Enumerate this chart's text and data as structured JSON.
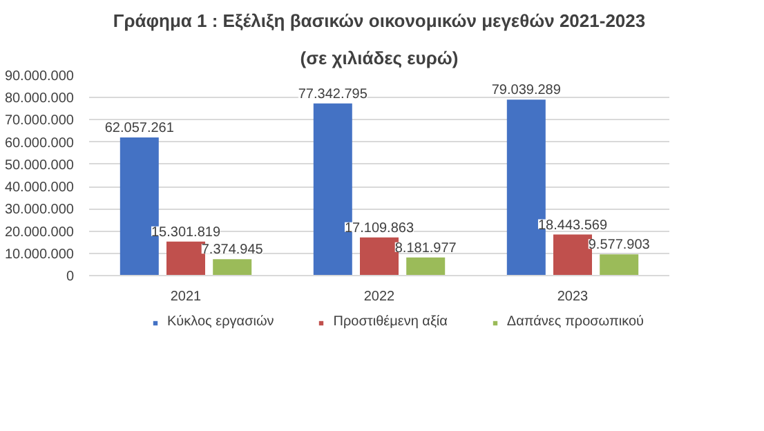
{
  "chart_data": {
    "type": "bar",
    "title": "Γράφημα 1 : Εξέλιξη βασικών οικονομικών μεγεθών 2021-2023",
    "subtitle": "(σε χιλιάδες ευρώ)",
    "categories": [
      "2021",
      "2022",
      "2023"
    ],
    "series": [
      {
        "name": "Κύκλος εργασιών",
        "color": "#4472c4",
        "values": [
          62057261,
          77342795,
          79039289
        ],
        "value_labels": [
          "62.057.261",
          "77.342.795",
          "79.039.289"
        ]
      },
      {
        "name": "Προστιθέμενη αξία",
        "color": "#c0504d",
        "values": [
          15301819,
          17109863,
          18443569
        ],
        "value_labels": [
          "15.301.819",
          "17.109.863",
          "18.443.569"
        ]
      },
      {
        "name": "Δαπάνες προσωπικού",
        "color": "#9bbb59",
        "values": [
          7374945,
          8181977,
          9577903
        ],
        "value_labels": [
          "7.374.945",
          "8.181.977",
          "9.577.903"
        ]
      }
    ],
    "ylim": [
      0,
      90000000
    ],
    "yticks": [
      0,
      {
        "value": 10000000,
        "label": "10.000.000"
      },
      {
        "value": 20000000,
        "label": "20.000.000"
      },
      {
        "value": 30000000,
        "label": "30.000.000"
      },
      {
        "value": 40000000,
        "label": "40.000.000"
      },
      {
        "value": 50000000,
        "label": "50.000.000"
      },
      {
        "value": 60000000,
        "label": "60.000.000"
      },
      {
        "value": 70000000,
        "label": "70.000.000"
      },
      {
        "value": 80000000,
        "label": "80.000.000"
      },
      {
        "value": 90000000,
        "label": "90.000.000"
      }
    ],
    "grid": "y",
    "legend": "bottom"
  }
}
